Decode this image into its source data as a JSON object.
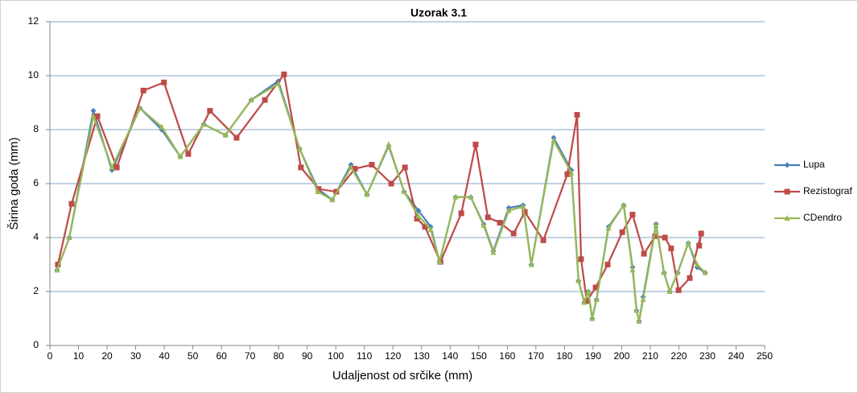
{
  "chart_data": {
    "type": "line",
    "title": "Uzorak 3.1",
    "x_label": "Udaljenost od srčike (mm)",
    "y_label": "Širina goda (mm)",
    "xlim": [
      0,
      250
    ],
    "xticks": [
      0,
      10,
      20,
      30,
      40,
      50,
      60,
      70,
      80,
      90,
      100,
      110,
      120,
      130,
      140,
      150,
      160,
      170,
      180,
      190,
      200,
      210,
      220,
      230,
      240,
      250
    ],
    "ylim": [
      0,
      12
    ],
    "yticks": [
      0,
      2,
      4,
      6,
      8,
      10,
      12
    ],
    "grid": true,
    "legend": "right",
    "series": [
      {
        "name": "Lupa",
        "color": "#4a7ebb",
        "marker": "diamond",
        "x": [
          2.5,
          6.8,
          15.2,
          21.7,
          31.5,
          39.1,
          45.6,
          53.8,
          61.4,
          70.4,
          79.9,
          87.3,
          93.7,
          98.8,
          105.3,
          110.9,
          118.5,
          123.9,
          128.9,
          133.2,
          136.3,
          141.9,
          147.2,
          151.7,
          155.1,
          160.5,
          165.5,
          168.4,
          176.2,
          182.4,
          184.9,
          186.9,
          188.3,
          189.7,
          191.2,
          195.4,
          200.7,
          203.8,
          205.2,
          206.1,
          207.5,
          212.0,
          214.8,
          216.8,
          219.6,
          223.3,
          226.4,
          229.2
        ],
        "values": [
          2.8,
          4.0,
          8.7,
          6.5,
          8.8,
          8.0,
          7.0,
          8.2,
          7.8,
          9.1,
          9.8,
          7.3,
          5.8,
          5.4,
          6.7,
          5.6,
          7.4,
          5.7,
          5.0,
          4.4,
          3.1,
          5.5,
          5.5,
          4.5,
          3.5,
          5.1,
          5.2,
          3.0,
          7.7,
          6.5,
          2.4,
          1.6,
          2.0,
          1.0,
          1.7,
          4.4,
          5.2,
          2.9,
          1.3,
          0.9,
          1.8,
          4.5,
          2.7,
          2.0,
          2.7,
          3.8,
          2.9,
          2.7
        ]
      },
      {
        "name": "Rezistograf",
        "color": "#be4b48",
        "marker": "square",
        "x": [
          2.8,
          7.6,
          16.6,
          23.4,
          32.7,
          39.9,
          48.4,
          56.0,
          65.3,
          75.2,
          81.9,
          87.8,
          94.0,
          100.2,
          106.7,
          112.6,
          119.4,
          124.2,
          128.4,
          131.2,
          136.6,
          143.9,
          148.9,
          153.2,
          157.4,
          162.2,
          166.1,
          172.6,
          181.0,
          184.4,
          185.8,
          187.8,
          190.9,
          195.1,
          200.2,
          203.8,
          207.8,
          211.7,
          215.1,
          217.3,
          219.9,
          223.8,
          227.8,
          227.1
        ],
        "values": [
          3.0,
          5.25,
          8.5,
          6.6,
          9.45,
          9.75,
          7.1,
          8.7,
          7.7,
          9.1,
          10.05,
          6.6,
          5.8,
          5.7,
          6.55,
          6.7,
          6.0,
          6.6,
          4.7,
          4.4,
          3.1,
          4.9,
          7.45,
          4.75,
          4.55,
          4.15,
          4.95,
          3.9,
          6.35,
          8.55,
          3.2,
          1.65,
          2.15,
          3.0,
          4.2,
          4.85,
          3.4,
          4.05,
          4.0,
          3.6,
          2.05,
          2.5,
          4.15,
          3.7
        ]
      },
      {
        "name": "CDendro",
        "color": "#98b954",
        "marker": "triangle",
        "x": [
          2.5,
          6.8,
          15.2,
          21.7,
          31.5,
          39.1,
          45.6,
          53.8,
          61.4,
          70.4,
          79.9,
          87.3,
          93.7,
          98.8,
          105.3,
          110.9,
          118.5,
          123.9,
          128.9,
          133.2,
          136.3,
          141.9,
          147.2,
          151.7,
          155.1,
          160.5,
          165.5,
          168.4,
          176.2,
          182.4,
          184.9,
          186.9,
          188.3,
          189.7,
          191.2,
          195.4,
          200.7,
          203.8,
          205.2,
          206.1,
          207.5,
          212.0,
          214.8,
          216.8,
          219.6,
          223.3,
          226.4,
          229.2
        ],
        "values": [
          2.8,
          4.0,
          8.5,
          6.6,
          8.8,
          8.1,
          7.0,
          8.2,
          7.8,
          9.1,
          9.7,
          7.3,
          5.7,
          5.4,
          6.6,
          5.6,
          7.45,
          5.7,
          4.8,
          4.3,
          3.1,
          5.5,
          5.5,
          4.45,
          3.45,
          5.0,
          5.15,
          3.0,
          7.6,
          6.4,
          2.4,
          1.6,
          2.0,
          1.0,
          1.7,
          4.35,
          5.2,
          2.8,
          1.3,
          0.9,
          1.7,
          4.45,
          2.7,
          2.0,
          2.7,
          3.8,
          3.0,
          2.7
        ]
      }
    ]
  }
}
